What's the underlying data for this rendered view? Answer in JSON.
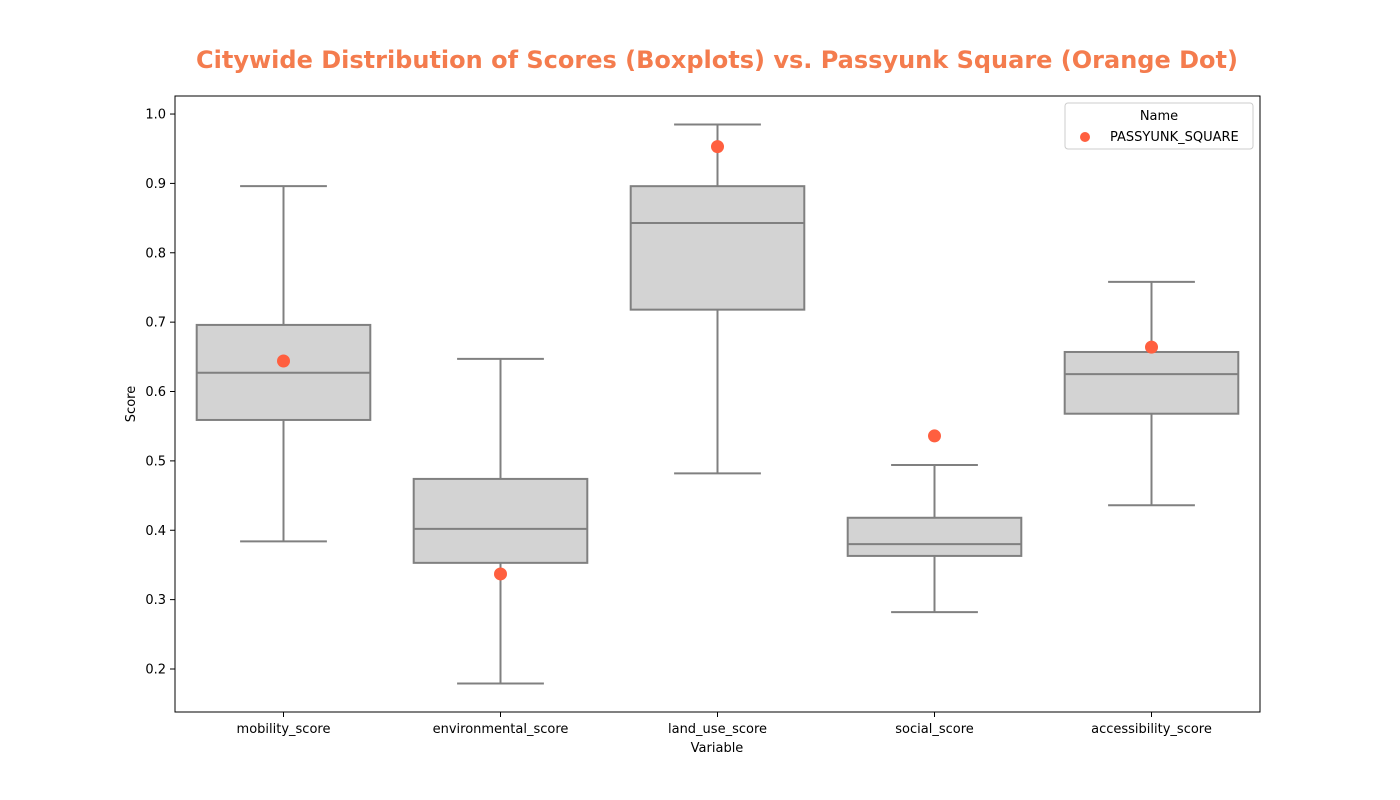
{
  "chart_data": {
    "type": "box",
    "title": "Citywide Distribution of Scores (Boxplots) vs. Passyunk Square (Orange Dot)",
    "title_color": "#F47C4E",
    "xlabel": "Variable",
    "ylabel": "Score",
    "ylim": [
      0.138,
      1.026
    ],
    "yticks": [
      "0.2",
      "0.3",
      "0.4",
      "0.5",
      "0.6",
      "0.7",
      "0.8",
      "0.9",
      "1.0"
    ],
    "grid": false,
    "categories": [
      "mobility_score",
      "environmental_score",
      "land_use_score",
      "social_score",
      "accessibility_score"
    ],
    "boxes": [
      {
        "whisker_low": 0.384,
        "q1": 0.559,
        "median": 0.627,
        "q3": 0.696,
        "whisker_high": 0.896
      },
      {
        "whisker_low": 0.179,
        "q1": 0.353,
        "median": 0.402,
        "q3": 0.474,
        "whisker_high": 0.647
      },
      {
        "whisker_low": 0.482,
        "q1": 0.718,
        "median": 0.843,
        "q3": 0.896,
        "whisker_high": 0.985
      },
      {
        "whisker_low": 0.282,
        "q1": 0.363,
        "median": 0.38,
        "q3": 0.418,
        "whisker_high": 0.494
      },
      {
        "whisker_low": 0.436,
        "q1": 0.568,
        "median": 0.625,
        "q3": 0.657,
        "whisker_high": 0.758
      }
    ],
    "box_fill": "#D3D3D3",
    "box_edge": "#808080",
    "series": [
      {
        "name": "PASSYUNK_SQUARE",
        "color": "#FF5F3F",
        "values": [
          0.644,
          0.337,
          0.953,
          0.536,
          0.664
        ]
      }
    ],
    "legend": {
      "title": "Name",
      "placement": "top-right"
    }
  }
}
